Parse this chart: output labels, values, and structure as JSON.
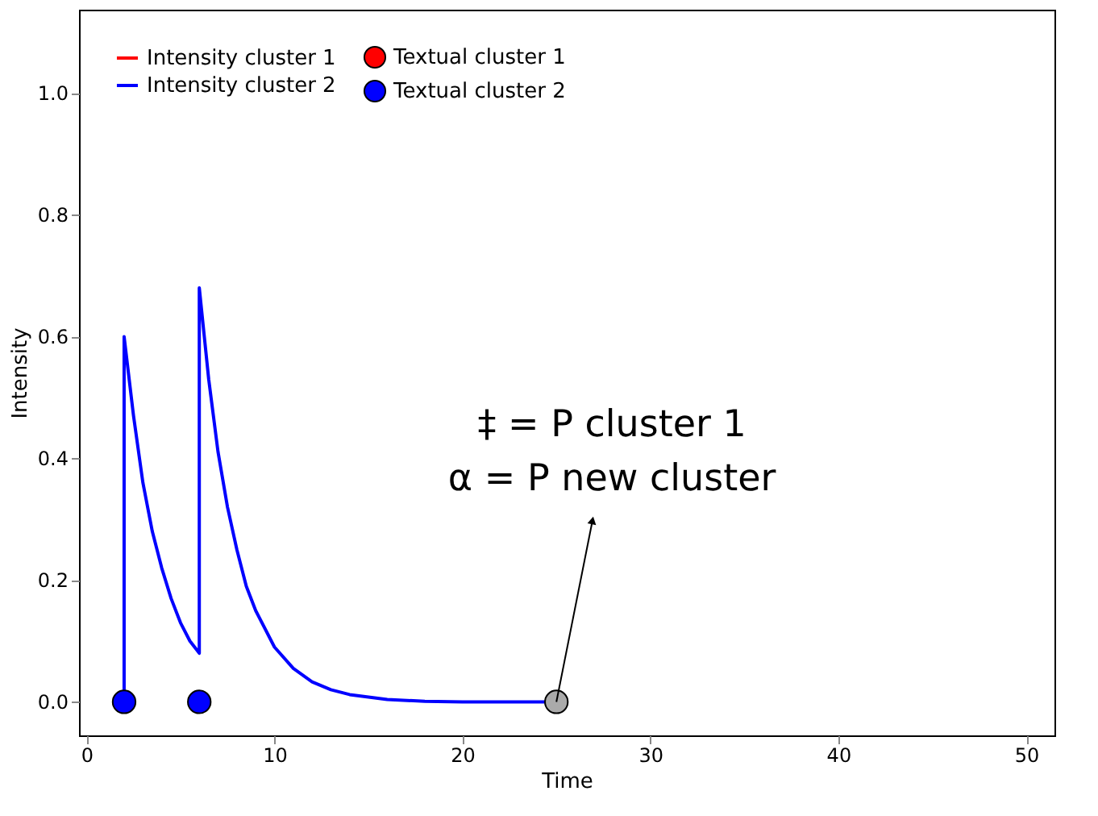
{
  "chart_data": {
    "type": "line",
    "xlabel": "Time",
    "ylabel": "Intensity",
    "xlim": [
      -0.4,
      51.5
    ],
    "ylim": [
      -0.055,
      1.137
    ],
    "xticks": [
      0,
      10,
      20,
      30,
      40,
      50
    ],
    "yticks": [
      {
        "value": 0,
        "label": "0.0"
      },
      0.2,
      0.4,
      0.6,
      0.8,
      {
        "value": 1,
        "label": "1.0"
      }
    ],
    "legend": "top left",
    "line_style": "solid",
    "series": [
      {
        "name": "Intensity cluster 1",
        "color": "#ff0000"
      },
      {
        "name": "Intensity cluster 2",
        "color": "#0000ff",
        "x": [
          2,
          2,
          2.5,
          3,
          3.5,
          4,
          4.5,
          5,
          5.5,
          6,
          6,
          6.5,
          7,
          7.5,
          8,
          8.5,
          9,
          10,
          11,
          12,
          13,
          14,
          16,
          18,
          20,
          25
        ],
        "values": [
          0,
          0.6,
          0.47,
          0.36,
          0.28,
          0.22,
          0.17,
          0.13,
          0.1,
          0.08,
          0.68,
          0.53,
          0.41,
          0.32,
          0.25,
          0.19,
          0.15,
          0.09,
          0.055,
          0.033,
          0.02,
          0.012,
          0.004,
          0.001,
          0,
          0
        ]
      },
      {
        "name": "Textual cluster 1",
        "type": "scatter",
        "color": "#ff0000"
      },
      {
        "name": "Textual cluster 2",
        "type": "scatter",
        "color": "#0000ff",
        "x": [
          2,
          6
        ],
        "values": [
          0,
          0
        ]
      },
      {
        "type": "scatter",
        "color": "#aaaaaa",
        "x": [
          25
        ],
        "values": [
          0
        ]
      }
    ],
    "annotations": [
      "‡ = P cluster 1",
      {
        "text": "α = P new cluster",
        "x": 25,
        "y": 0
      }
    ]
  }
}
